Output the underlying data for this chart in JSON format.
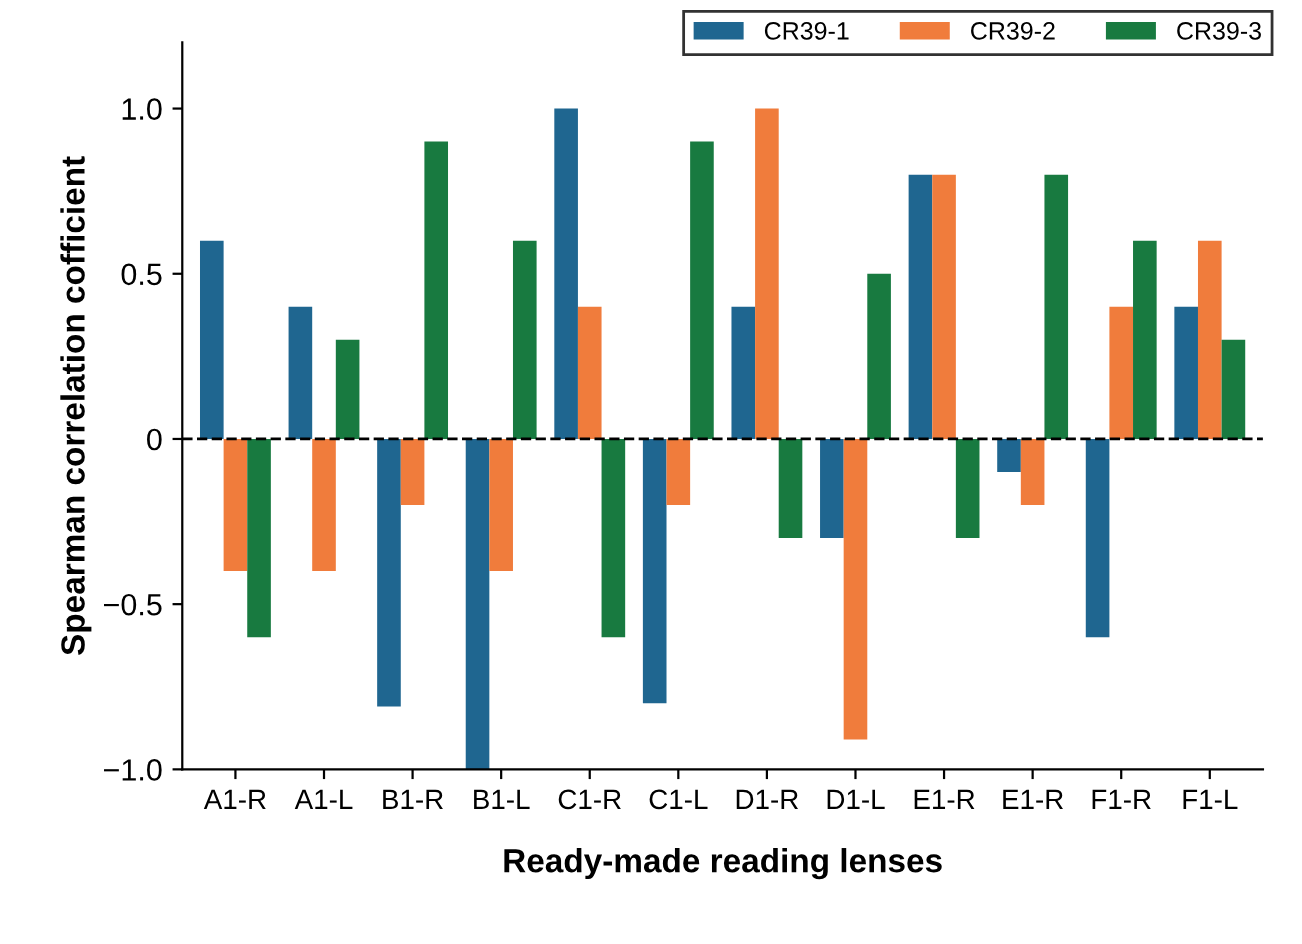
{
  "chart_data": {
    "type": "bar",
    "xlabel": "Ready-made reading lenses",
    "ylabel": "Spearman correlation cofficient",
    "categories": [
      "A1-R",
      "A1-L",
      "B1-R",
      "B1-L",
      "C1-R",
      "C1-L",
      "D1-R",
      "D1-L",
      "E1-R",
      "E1-R",
      "F1-R",
      "F1-L"
    ],
    "series": [
      {
        "name": "CR39-1",
        "color": "#1f6690",
        "values": [
          0.6,
          0.4,
          -0.81,
          -1.0,
          1.0,
          -0.8,
          0.4,
          -0.3,
          0.8,
          -0.1,
          -0.6,
          0.4
        ]
      },
      {
        "name": "CR39-2",
        "color": "#f07c3c",
        "values": [
          -0.4,
          -0.4,
          -0.2,
          -0.4,
          0.4,
          -0.2,
          1.0,
          -0.91,
          0.8,
          -0.2,
          0.4,
          0.6
        ]
      },
      {
        "name": "CR39-3",
        "color": "#187a40",
        "values": [
          -0.6,
          0.3,
          0.9,
          0.6,
          -0.6,
          0.9,
          -0.3,
          0.5,
          -0.3,
          0.8,
          0.6,
          0.3
        ]
      }
    ],
    "ylim": [
      -1.0,
      1.2
    ],
    "yticks": [
      {
        "value": -1.0,
        "label": "−1.0"
      },
      {
        "value": -0.5,
        "label": "−0.5"
      },
      0,
      0.5,
      {
        "value": 1.0,
        "label": "1.0"
      }
    ],
    "ref_lines": [
      {
        "axis": "y",
        "value": 0,
        "color": "#000000",
        "line_style": "dashed"
      }
    ],
    "grid": false,
    "legend": "top right"
  }
}
